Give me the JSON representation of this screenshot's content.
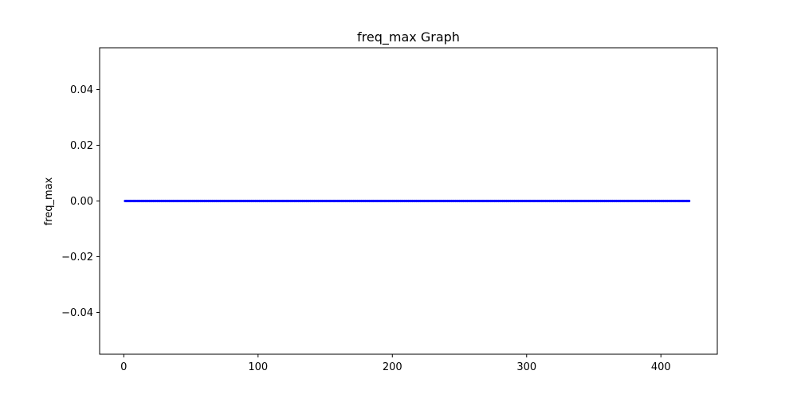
{
  "chart_data": {
    "type": "line",
    "title": "freq_max Graph",
    "xlabel": "",
    "ylabel": "freq_max",
    "xlim": [
      -18,
      442
    ],
    "ylim": [
      -0.055,
      0.055
    ],
    "x_ticks": [
      0,
      100,
      200,
      300,
      400
    ],
    "y_ticks": [
      0.04,
      0.02,
      0.0,
      -0.02,
      -0.04
    ],
    "x_tick_labels": [
      "0",
      "100",
      "200",
      "300",
      "400"
    ],
    "y_tick_labels": [
      "0.04",
      "0.02",
      "0.00",
      "−0.02",
      "−0.04"
    ],
    "x_start": 1,
    "x_end": 421,
    "constant_value": 0.0,
    "grid": false,
    "marker": "circle",
    "colors": {
      "line": "#0000cc",
      "marker": "#0000ff",
      "axes": "#000000"
    }
  }
}
